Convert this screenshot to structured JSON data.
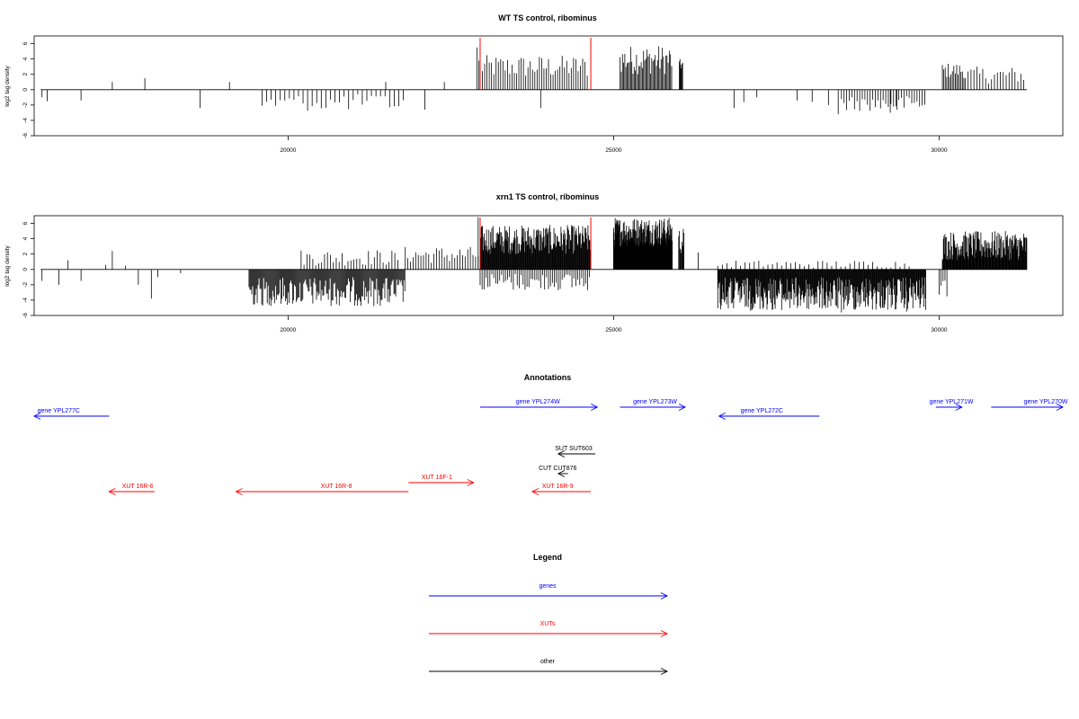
{
  "chart_data": [
    {
      "type": "bar",
      "title": "WT TS control, ribominus",
      "ylabel": "log2 tag density",
      "xlim": [
        16100,
        31900
      ],
      "ylim": [
        -6,
        7
      ],
      "xticks": [
        20000,
        25000,
        30000
      ],
      "yticks": [
        -6,
        -4,
        -2,
        0,
        2,
        4,
        6
      ],
      "markers": [
        22950,
        24650
      ],
      "marker_color": "#ff0000",
      "bar_color": "#000000",
      "dense_regions": [
        {
          "x0": 22950,
          "x1": 24600,
          "pos": [
            1.5,
            4.5
          ],
          "step": 35
        },
        {
          "x0": 25100,
          "x1": 25900,
          "pos": [
            2.0,
            5.8
          ],
          "step": 18
        },
        {
          "x0": 26010,
          "x1": 26060,
          "pos": [
            2.5,
            4.0
          ],
          "step": 10
        },
        {
          "x0": 30050,
          "x1": 30400,
          "pos": [
            1.5,
            3.5
          ],
          "step": 22
        },
        {
          "x0": 30400,
          "x1": 31300,
          "pos": [
            0.8,
            3.0
          ],
          "step": 45
        },
        {
          "x0": 19600,
          "x1": 21800,
          "neg": [
            -0.6,
            -2.8
          ],
          "step": 70
        },
        {
          "x0": 28500,
          "x1": 29800,
          "neg": [
            -0.8,
            -2.8
          ],
          "step": 40
        }
      ],
      "spikes": [
        [
          16220,
          -1.0
        ],
        [
          16300,
          -1.5
        ],
        [
          16820,
          -1.4
        ],
        [
          17300,
          1.0
        ],
        [
          17800,
          1.5
        ],
        [
          18650,
          -2.4
        ],
        [
          19100,
          1.0
        ],
        [
          21500,
          1.0
        ],
        [
          22100,
          -2.6
        ],
        [
          22400,
          1.0
        ],
        [
          22900,
          5.5
        ],
        [
          22930,
          3.8
        ],
        [
          23880,
          -2.4
        ],
        [
          26850,
          -2.4
        ],
        [
          27000,
          -1.6
        ],
        [
          27200,
          -1.0
        ],
        [
          27820,
          -1.4
        ],
        [
          28050,
          -1.6
        ],
        [
          28300,
          -2.0
        ],
        [
          28450,
          -3.2
        ],
        [
          29250,
          -3.0
        ],
        [
          29350,
          -2.6
        ]
      ]
    },
    {
      "type": "bar",
      "title": "xrn1 TS control, ribominus",
      "ylabel": "log2 tag density",
      "xlim": [
        16100,
        31900
      ],
      "ylim": [
        -6,
        7
      ],
      "xticks": [
        20000,
        25000,
        30000
      ],
      "yticks": [
        -6,
        -4,
        -2,
        0,
        2,
        4,
        6
      ],
      "markers": [
        22950,
        24650
      ],
      "marker_color": "#ff0000",
      "bar_color": "#000000",
      "dense_regions": [
        {
          "x0": 19400,
          "x1": 21800,
          "neg": [
            -1.0,
            -4.8
          ],
          "step": 14
        },
        {
          "x0": 20200,
          "x1": 21700,
          "pos": [
            0.5,
            2.6
          ],
          "step": 45
        },
        {
          "x0": 21800,
          "x1": 22950,
          "pos": [
            0.8,
            3.0
          ],
          "step": 40
        },
        {
          "x0": 22950,
          "x1": 24650,
          "pos": [
            2.0,
            5.8
          ],
          "step": 9
        },
        {
          "x0": 22950,
          "x1": 24650,
          "neg": [
            -0.5,
            -2.8
          ],
          "step": 30
        },
        {
          "x0": 25000,
          "x1": 25900,
          "pos": [
            3.0,
            6.8
          ],
          "step": 6
        },
        {
          "x0": 26000,
          "x1": 26080,
          "pos": [
            2.0,
            5.5
          ],
          "step": 10
        },
        {
          "x0": 26600,
          "x1": 29800,
          "neg": [
            -1.0,
            -5.4
          ],
          "step": 9
        },
        {
          "x0": 26600,
          "x1": 29600,
          "pos": [
            0.2,
            1.2
          ],
          "step": 70
        },
        {
          "x0": 30050,
          "x1": 31350,
          "pos": [
            1.2,
            5.0
          ],
          "step": 8
        },
        {
          "x0": 30000,
          "x1": 30120,
          "neg": [
            -0.8,
            -3.8
          ],
          "step": 30
        }
      ],
      "spikes": [
        [
          16220,
          -1.5
        ],
        [
          16480,
          -2.0
        ],
        [
          16620,
          1.2
        ],
        [
          16820,
          -1.5
        ],
        [
          17200,
          0.6
        ],
        [
          17300,
          2.4
        ],
        [
          17500,
          0.5
        ],
        [
          17700,
          -2.0
        ],
        [
          17900,
          -3.8
        ],
        [
          18000,
          -1.0
        ],
        [
          18350,
          -0.5
        ],
        [
          26300,
          2.2
        ],
        [
          28500,
          -5.6
        ],
        [
          29500,
          -5.5
        ],
        [
          22920,
          6.8
        ]
      ]
    }
  ],
  "axis": {
    "ylabel": "log2 tag density"
  },
  "annotations": {
    "title": "Annotations",
    "items": [
      {
        "label": "gene YPL277C",
        "x0": 16100,
        "x1": 17250,
        "dir": "left",
        "row": 1,
        "color": "#0000ff",
        "label_x": 16150
      },
      {
        "label": "gene YPL274W",
        "x0": 22950,
        "x1": 24750,
        "dir": "right",
        "row": 0,
        "color": "#0000ff",
        "label_x": 23500
      },
      {
        "label": "gene YPL273W",
        "x0": 25100,
        "x1": 26100,
        "dir": "right",
        "row": 0,
        "color": "#0000ff",
        "label_x": 25300
      },
      {
        "label": "gene YPL272C",
        "x0": 26620,
        "x1": 28160,
        "dir": "left",
        "row": 1,
        "color": "#0000ff",
        "label_x": 26950
      },
      {
        "label": "gene YPL271W",
        "x0": 29950,
        "x1": 30350,
        "dir": "right",
        "row": 0,
        "color": "#0000ff",
        "label_x": 29850
      },
      {
        "label": "gene YPL270W",
        "x0": 30800,
        "x1": 31900,
        "dir": "right",
        "row": 0,
        "color": "#0000ff",
        "label_x": 31300
      },
      {
        "label": "SUT SUT603",
        "x0": 24150,
        "x1": 24720,
        "dir": "left",
        "row": 2,
        "color": "#000000",
        "label_x": 24100
      },
      {
        "label": "CUT CUT876",
        "x0": 24150,
        "x1": 24300,
        "dir": "left",
        "row": 3,
        "color": "#000000",
        "label_x": 23850
      },
      {
        "label": "XUT 16R-6",
        "x0": 17250,
        "x1": 17950,
        "dir": "left",
        "row": 5,
        "color": "#ff0000",
        "label_x": 17450
      },
      {
        "label": "XUT 16R-8",
        "x0": 19200,
        "x1": 21850,
        "dir": "left",
        "row": 5,
        "color": "#ff0000",
        "label_x": 20500
      },
      {
        "label": "XUT 16F-1",
        "x0": 21850,
        "x1": 22850,
        "dir": "right",
        "row": 4,
        "color": "#ff0000",
        "label_x": 22050
      },
      {
        "label": "XUT 16R-9",
        "x0": 23750,
        "x1": 24650,
        "dir": "left",
        "row": 5,
        "color": "#ff0000",
        "label_x": 23900
      }
    ]
  },
  "legend": {
    "title": "Legend",
    "items": [
      {
        "label": "genes",
        "color": "#0000ff"
      },
      {
        "label": "XUTs",
        "color": "#ff0000"
      },
      {
        "label": "other",
        "color": "#000000"
      }
    ]
  }
}
